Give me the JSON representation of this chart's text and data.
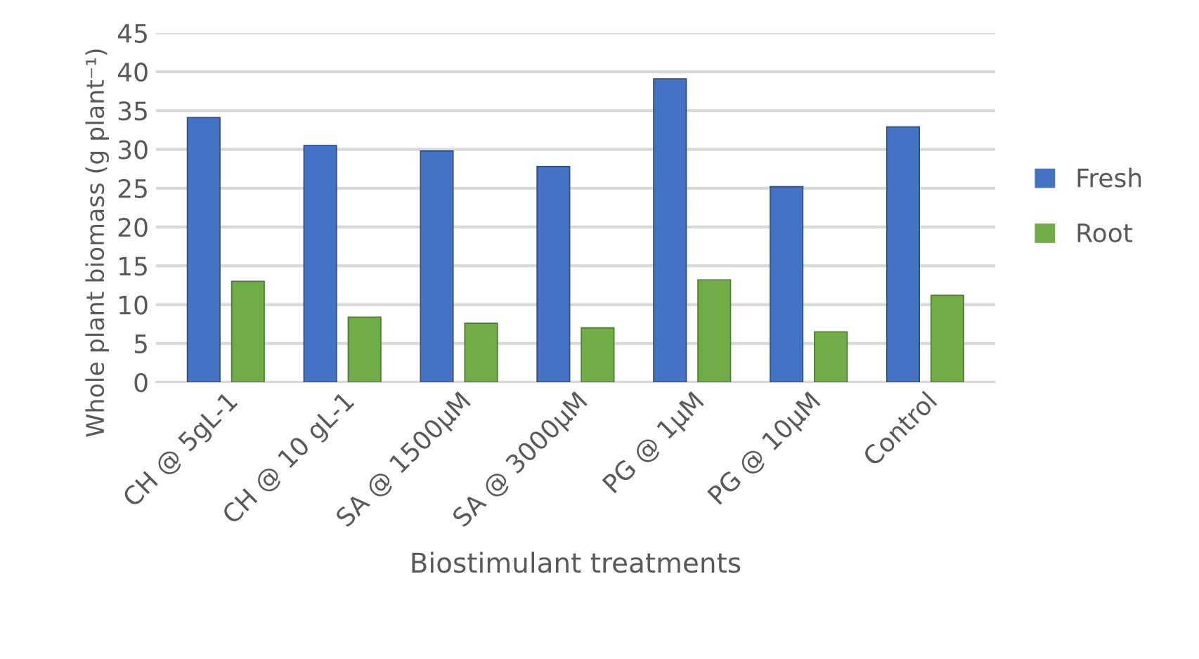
{
  "chart_data": {
    "type": "bar",
    "xlabel": "Biostimulant treatments",
    "ylabel": "Whole plant biomass (g plant⁻¹)",
    "categories": [
      "CH @ 5gL-1",
      "CH @ 10 gL-1",
      "SA @ 1500µM",
      "SA @ 3000µM",
      "PG @ 1µM",
      "PG @ 10µM",
      "Control"
    ],
    "series": [
      {
        "name": "Fresh",
        "color": "#4472c4",
        "values": [
          34.1,
          30.5,
          29.8,
          27.8,
          39.1,
          25.2,
          32.9
        ]
      },
      {
        "name": "Root",
        "color": "#70ad47",
        "values": [
          13.0,
          8.4,
          7.6,
          7.0,
          13.2,
          6.5,
          11.2
        ]
      }
    ],
    "ylim": [
      0,
      45
    ],
    "yticks": [
      0,
      5,
      10,
      15,
      20,
      25,
      30,
      35,
      40,
      45
    ],
    "grid": "y",
    "legend": "right"
  }
}
